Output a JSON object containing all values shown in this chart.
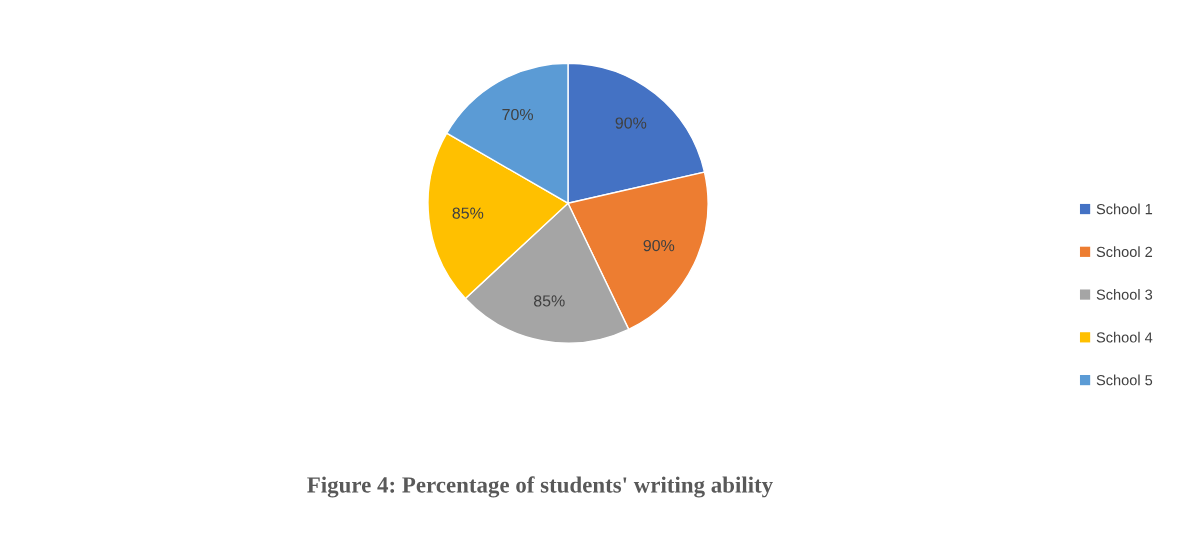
{
  "chart_data": {
    "type": "pie",
    "title": "Figure 4: Percentage of students' writing ability",
    "categories": [
      "School 1",
      "School 2",
      "School 3",
      "School 4",
      "School 5"
    ],
    "values": [
      90,
      90,
      85,
      85,
      70
    ],
    "value_labels": [
      "90%",
      "90%",
      "85%",
      "85%",
      "70%"
    ],
    "colors": [
      "#4472c4",
      "#ed7d31",
      "#a5a5a5",
      "#ffc000",
      "#5b9bd5"
    ],
    "legend": "right"
  }
}
